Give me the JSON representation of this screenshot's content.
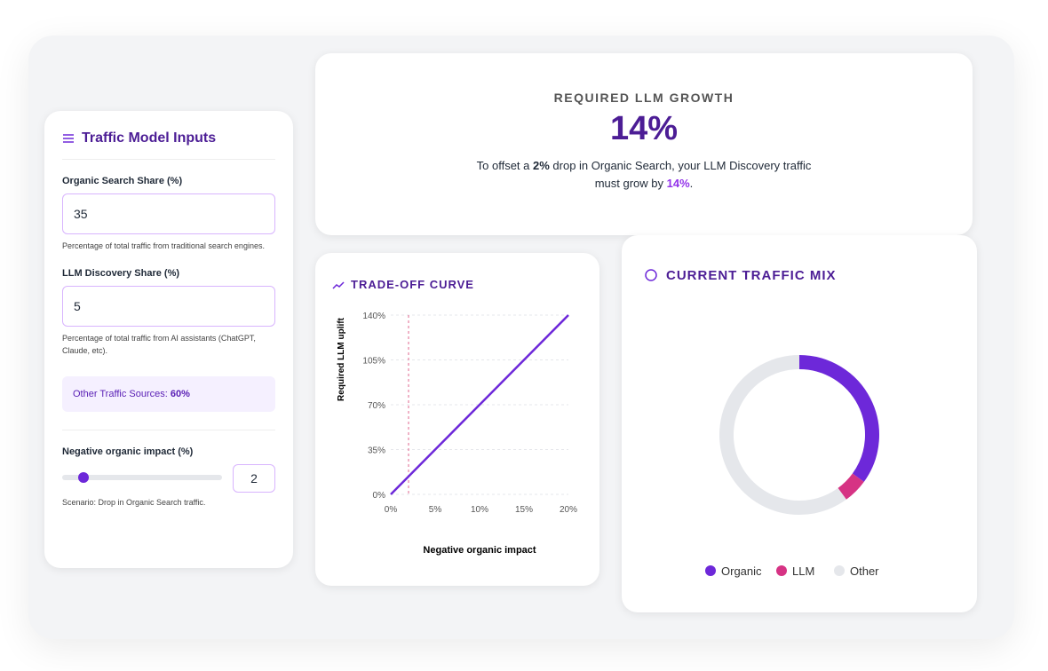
{
  "inputs": {
    "title": "Traffic Model Inputs",
    "fields": [
      {
        "label": "Organic Search Share (%)",
        "value": 35,
        "help": "Percentage of total traffic from traditional search engines."
      },
      {
        "label": "LLM Discovery Share (%)",
        "value": 5,
        "help": "Percentage of total traffic from AI assistants (ChatGPT, Claude, etc)."
      }
    ],
    "other_label": "Other Traffic Sources:",
    "other_value": "60%",
    "impact_label": "Negative organic impact (%)",
    "impact_value": 2,
    "impact_note": "Scenario: Drop in Organic Search traffic."
  },
  "result": {
    "heading": "REQUIRED LLM GROWTH",
    "value": "14%",
    "text": [
      "To offset a ",
      "2%",
      " drop in Organic Search, your LLM Discovery traffic must grow by ",
      "14%",
      "."
    ]
  },
  "chart_data": [
    {
      "type": "line",
      "title": "TRADE-OFF CURVE",
      "x_label": "Negative organic impact",
      "y_label": "Required LLM uplift",
      "x": [
        0,
        5,
        10,
        15,
        20
      ],
      "values": [
        0,
        35,
        70,
        105,
        140
      ],
      "color": "#6d28d9",
      "marker_x": 2,
      "marker_color": "#e0678f",
      "xlim": [
        0,
        20
      ],
      "ylim": [
        0,
        140
      ],
      "xticks": [
        {
          "value": 0,
          "label": "0%"
        },
        {
          "value": 5,
          "label": "5%"
        },
        {
          "value": 10,
          "label": "10%"
        },
        {
          "value": 15,
          "label": "15%"
        },
        {
          "value": 20,
          "label": "20%"
        }
      ],
      "yticks": [
        {
          "value": 0,
          "label": "0%"
        },
        {
          "value": 35,
          "label": "35%"
        },
        {
          "value": 70,
          "label": "70%"
        },
        {
          "value": 105,
          "label": "105%"
        },
        {
          "value": 140,
          "label": "140%"
        }
      ],
      "grid": true
    },
    {
      "type": "pie",
      "title": "CURRENT TRAFFIC MIX",
      "categories": [
        "Organic",
        "LLM",
        "Other"
      ],
      "values": [
        35,
        5,
        60
      ],
      "colors": [
        "#6d28d9",
        "#d63384",
        "#e5e7eb"
      ]
    }
  ]
}
